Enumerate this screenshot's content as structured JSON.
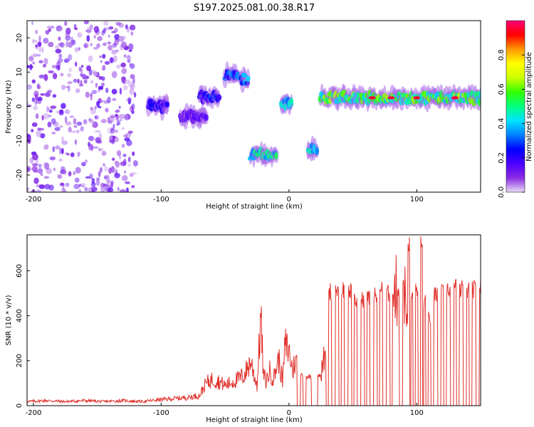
{
  "title": "S197.2025.081.00.38.R17",
  "chart_data": [
    {
      "type": "heatmap",
      "xlabel": "Height of straight line (km)",
      "ylabel": "Frequency (Hz)",
      "xlim": [
        -205,
        150
      ],
      "ylim": [
        -25,
        25
      ],
      "x_ticks": [
        -200,
        -100,
        0,
        100
      ],
      "y_ticks": [
        -20,
        -10,
        0,
        10,
        20
      ],
      "colorbar": {
        "label": "Normalized spectral amplitude",
        "range": [
          0,
          1
        ],
        "ticks": [
          "0.0",
          "0.2",
          "0.4",
          "0.6",
          "0.8"
        ],
        "colors": [
          "#e8dcf6",
          "#8a2be2",
          "#4b00ff",
          "#0000ff",
          "#0080ff",
          "#00e5ff",
          "#00ff80",
          "#33ff00",
          "#ccff00",
          "#ffff00",
          "#ff9900",
          "#ff0000",
          "#ff0077"
        ]
      },
      "features": [
        {
          "x_range": [
            -205,
            -120
          ],
          "freq_range": [
            -25,
            25
          ],
          "amplitude": 0.08,
          "description": "scattered noise"
        },
        {
          "x_range": [
            -110,
            -95
          ],
          "freq_center": 0,
          "amplitude": 0.2
        },
        {
          "x_range": [
            -85,
            -65
          ],
          "freq_center": -3,
          "amplitude": 0.15
        },
        {
          "x_range": [
            -70,
            -55
          ],
          "freq_center": 3,
          "amplitude": 0.25
        },
        {
          "x_range": [
            -50,
            -40
          ],
          "freq_center": 9,
          "amplitude": 0.3
        },
        {
          "x_range": [
            -38,
            -32
          ],
          "freq_center": 8,
          "amplitude": 0.35
        },
        {
          "x_range": [
            -30,
            -10
          ],
          "freq_center": -14,
          "amplitude": 0.45
        },
        {
          "x_range": [
            -6,
            2
          ],
          "freq_center": 1,
          "amplitude": 0.4
        },
        {
          "x_range": [
            15,
            22
          ],
          "freq_center": -12,
          "amplitude": 0.4
        },
        {
          "x_range": [
            25,
            150
          ],
          "freq_center": 2.5,
          "amplitude": 0.55,
          "peak_amplitude": 0.95,
          "description": "stable tone with red peaks near 65, 80, 100, 130 km"
        }
      ]
    },
    {
      "type": "line",
      "xlabel": "Height of straight line (km)",
      "ylabel": "SNR (10 * v/v)",
      "xlim": [
        -205,
        150
      ],
      "ylim": [
        0,
        760
      ],
      "x_ticks": [
        -200,
        -100,
        0,
        100
      ],
      "y_ticks": [
        0,
        200,
        400,
        600
      ],
      "color": "#e0302a",
      "x": [
        -205,
        -190,
        -175,
        -160,
        -145,
        -130,
        -115,
        -100,
        -90,
        -80,
        -70,
        -65,
        -60,
        -55,
        -50,
        -45,
        -40,
        -35,
        -30,
        -25,
        -22,
        -20,
        -18,
        -15,
        -12,
        -10,
        -8,
        -5,
        -3,
        0,
        3,
        5,
        8,
        10,
        12,
        15,
        20,
        25,
        28,
        30,
        32,
        35,
        38,
        40,
        42,
        45,
        48,
        50,
        52,
        55,
        58,
        60,
        62,
        65,
        68,
        70,
        72,
        75,
        78,
        80,
        82,
        85,
        88,
        90,
        92,
        94,
        95,
        96,
        98,
        100,
        102,
        104,
        105,
        106,
        108,
        110,
        112,
        115,
        118,
        120,
        122,
        125,
        128,
        130,
        132,
        135,
        138,
        140,
        142,
        145,
        148,
        150
      ],
      "y": [
        20,
        25,
        20,
        25,
        20,
        25,
        20,
        30,
        35,
        40,
        50,
        110,
        130,
        120,
        100,
        115,
        130,
        150,
        220,
        100,
        440,
        150,
        120,
        170,
        130,
        190,
        230,
        120,
        300,
        270,
        170,
        230,
        0,
        150,
        0,
        140,
        0,
        150,
        250,
        0,
        550,
        0,
        560,
        0,
        560,
        0,
        550,
        0,
        500,
        0,
        510,
        0,
        520,
        0,
        530,
        0,
        560,
        0,
        540,
        0,
        570,
        560,
        0,
        600,
        450,
        760,
        0,
        530,
        0,
        560,
        0,
        760,
        0,
        500,
        0,
        420,
        0,
        530,
        0,
        540,
        0,
        560,
        0,
        570,
        0,
        560,
        0,
        550,
        0,
        560,
        0,
        560
      ]
    }
  ]
}
